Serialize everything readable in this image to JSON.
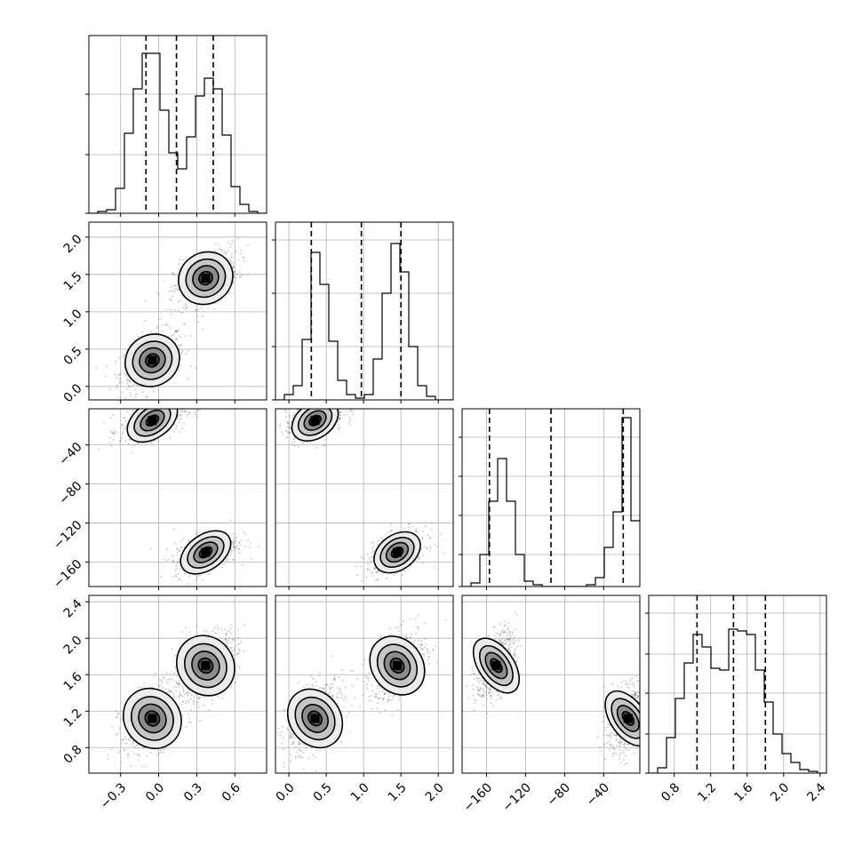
{
  "figure": {
    "type": "corner-plot",
    "colors": {
      "line": "#000000",
      "grid": "#b0b0b0",
      "scatter": "#555555"
    }
  },
  "chart_data": {
    "type": "corner",
    "parameters": [
      {
        "range": [
          -0.55,
          0.85
        ],
        "ticks": [
          -0.3,
          0.0,
          0.3,
          0.6
        ],
        "tick_labels": [
          "−0.3",
          "0.0",
          "0.3",
          "0.6"
        ],
        "quantiles": [
          -0.1,
          0.14,
          0.43
        ]
      },
      {
        "range": [
          -0.18,
          2.2
        ],
        "ticks": [
          0.0,
          0.5,
          1.0,
          1.5,
          2.0
        ],
        "tick_labels": [
          "0.0",
          "0.5",
          "1.0",
          "1.5",
          "2.0"
        ],
        "quantiles": [
          0.3,
          0.97,
          1.5
        ]
      },
      {
        "range": [
          -185,
          -3
        ],
        "ticks": [
          -160,
          -120,
          -80,
          -40
        ],
        "tick_labels": [
          "−160",
          "−120",
          "−80",
          "−40"
        ],
        "quantiles": [
          -157,
          -94,
          -20
        ]
      },
      {
        "range": [
          0.52,
          2.47
        ],
        "ticks": [
          0.8,
          1.2,
          1.6,
          2.0,
          2.4
        ],
        "tick_labels": [
          "0.8",
          "1.2",
          "1.6",
          "2.0",
          "2.4"
        ],
        "quantiles": [
          1.05,
          1.45,
          1.8
        ]
      }
    ],
    "histograms": [
      {
        "ylim": [
          0,
          1.0
        ],
        "yticks": [
          0.0,
          0.33,
          0.67
        ],
        "counts": [
          0.0,
          0.01,
          0.02,
          0.14,
          0.45,
          0.7,
          0.9,
          0.9,
          0.58,
          0.34,
          0.25,
          0.43,
          0.66,
          0.76,
          0.7,
          0.44,
          0.15,
          0.05,
          0.01,
          0.0
        ]
      },
      {
        "ylim": [
          0,
          1.0
        ],
        "yticks": [
          0.0,
          0.3,
          0.6,
          0.9
        ],
        "counts": [
          0.0,
          0.03,
          0.08,
          0.34,
          0.83,
          0.65,
          0.33,
          0.11,
          0.03,
          0.01,
          0.03,
          0.23,
          0.6,
          0.88,
          0.72,
          0.3,
          0.08,
          0.02,
          0.0,
          0.0
        ]
      },
      {
        "ylim": [
          0,
          1.0
        ],
        "yticks": [
          0.0,
          0.18,
          0.4,
          0.62,
          0.84
        ],
        "counts": [
          0.0,
          0.02,
          0.18,
          0.48,
          0.72,
          0.48,
          0.18,
          0.03,
          0.01,
          0.0,
          0.0,
          0.0,
          0.0,
          0.0,
          0.01,
          0.05,
          0.22,
          0.42,
          0.95,
          0.37
        ]
      },
      {
        "ylim": [
          0,
          1.0
        ],
        "yticks": [
          0.0,
          0.22,
          0.45,
          0.67,
          0.9
        ],
        "counts": [
          0.0,
          0.03,
          0.2,
          0.42,
          0.62,
          0.78,
          0.71,
          0.59,
          0.58,
          0.81,
          0.8,
          0.78,
          0.58,
          0.4,
          0.22,
          0.11,
          0.06,
          0.02,
          0.01,
          0.0
        ]
      }
    ],
    "modes": [
      [
        -0.05,
        0.35,
        -15,
        1.12
      ],
      [
        0.37,
        1.45,
        -150,
        1.7
      ]
    ]
  }
}
